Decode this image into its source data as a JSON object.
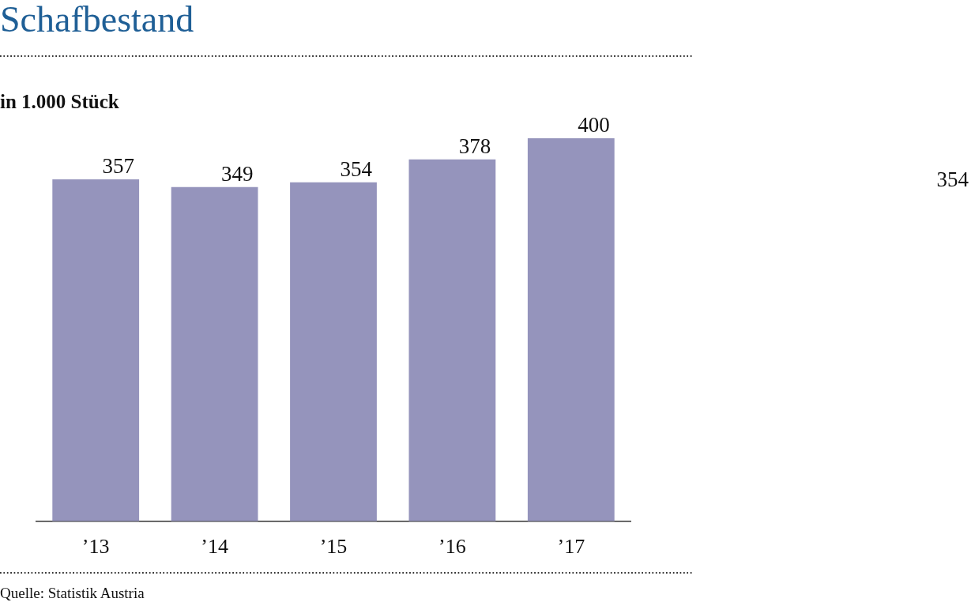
{
  "chart_data": {
    "type": "bar",
    "title": "Schafbestand",
    "subtitle": "in 1.000 Stück",
    "categories": [
      "’13",
      "’14",
      "’15",
      "’16",
      "’17"
    ],
    "values": [
      357,
      349,
      354,
      378,
      400
    ],
    "color": "#9594bc",
    "data_labels": true,
    "annotations": [
      "354",
      "Quelle: Statistik Austria"
    ]
  }
}
